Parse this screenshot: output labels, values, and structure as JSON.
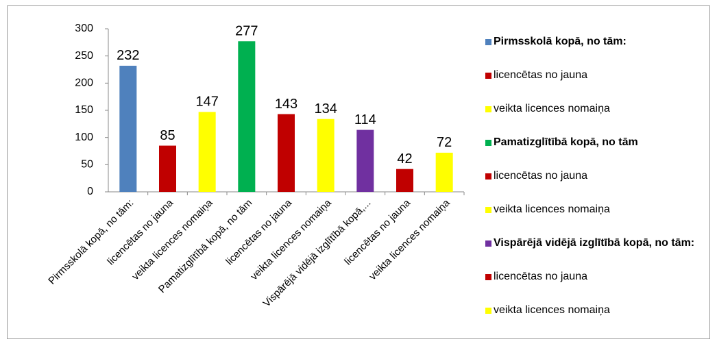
{
  "chart_data": {
    "type": "bar",
    "categories": [
      "Pirmsskolā kopā, no tām:",
      "licencētas no jauna",
      "veikta licences nomaiņa",
      "Pamatizglītībā kopā, no tām",
      "licencētas no jauna",
      "veikta licences nomaiņa",
      "Vispārējā vidējā izglītībā kopā,...",
      "licencētas no jauna",
      "veikta licences nomaiņa"
    ],
    "values": [
      232,
      85,
      147,
      277,
      143,
      134,
      114,
      42,
      72
    ],
    "colors": [
      "#4f81bd",
      "#c00000",
      "#ffff00",
      "#00b050",
      "#c00000",
      "#ffff00",
      "#7030a0",
      "#c00000",
      "#ffff00"
    ],
    "legend": [
      {
        "name": "Pirmsskolā kopā, no tām:",
        "color": "#4f81bd",
        "bold": true
      },
      {
        "name": "licencētas no jauna",
        "color": "#c00000",
        "bold": false
      },
      {
        "name": "veikta licences nomaiņa",
        "color": "#ffff00",
        "bold": false
      },
      {
        "name": "Pamatizglītībā kopā, no tām",
        "color": "#00b050",
        "bold": true
      },
      {
        "name": "licencētas no jauna",
        "color": "#c00000",
        "bold": false
      },
      {
        "name": "veikta licences nomaiņa",
        "color": "#ffff00",
        "bold": false
      },
      {
        "name": "Vispārējā vidējā izglītībā kopā, no tām:",
        "color": "#7030a0",
        "bold": true
      },
      {
        "name": "licencētas no jauna",
        "color": "#c00000",
        "bold": false
      },
      {
        "name": "veikta licences nomaiņa",
        "color": "#ffff00",
        "bold": false
      }
    ],
    "legend_position": "right",
    "ylim": [
      0,
      300
    ],
    "yticks": [
      0,
      50,
      100,
      150,
      200,
      250,
      300
    ],
    "grid": false
  }
}
